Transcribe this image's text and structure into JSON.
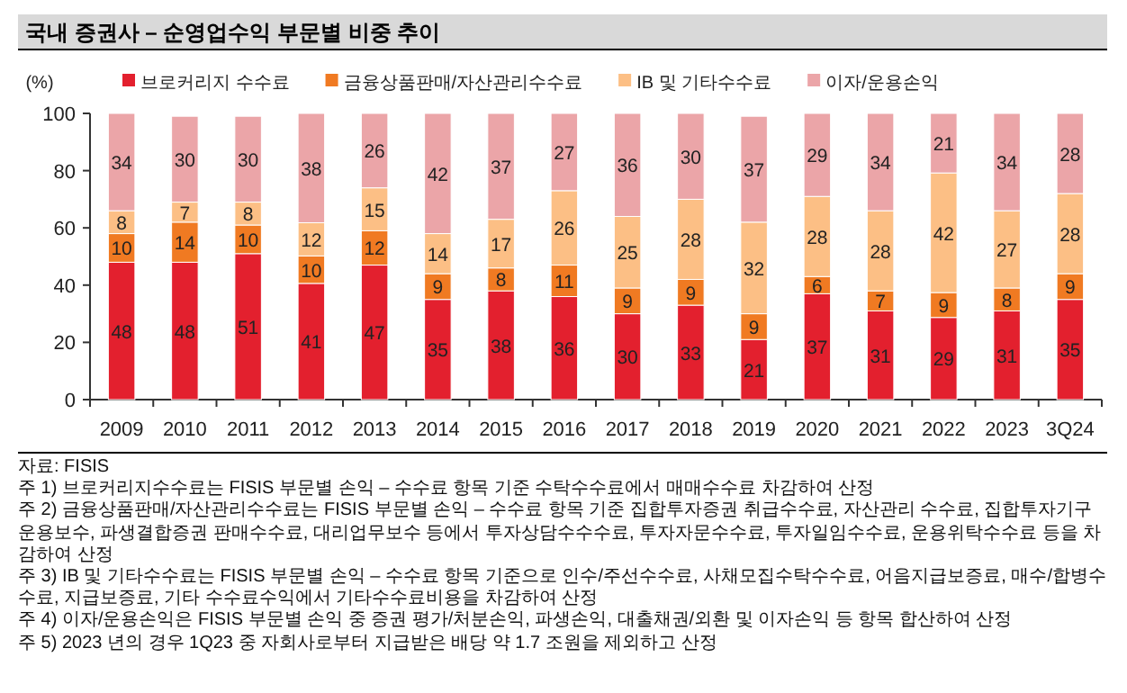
{
  "chart_data": {
    "type": "bar",
    "title": "국내 증권사 – 순영업수익 부문별 비중 추이",
    "ylabel": "(%)",
    "categories": [
      "2009",
      "2010",
      "2011",
      "2012",
      "2013",
      "2014",
      "2015",
      "2016",
      "2017",
      "2018",
      "2019",
      "2020",
      "2021",
      "2022",
      "2023",
      "3Q24"
    ],
    "series": [
      {
        "name": "브로커리지 수수료",
        "color": "#e3202e",
        "values": [
          48,
          48,
          51,
          40.6,
          47,
          35,
          38,
          36,
          30,
          33,
          21,
          37,
          31,
          28.7,
          31,
          35
        ],
        "value_labels": [
          "48",
          "48",
          "51",
          "41",
          "47",
          "35",
          "38",
          "36",
          "30",
          "33",
          "21",
          "37",
          "31",
          "29",
          "31",
          "35"
        ]
      },
      {
        "name": "금융상품판매/자산관리수수료",
        "color": "#f07a22",
        "values": [
          10,
          14,
          10,
          9.6,
          12,
          9,
          8,
          11,
          9,
          9,
          9,
          6,
          7,
          8.7,
          8,
          9
        ],
        "value_labels": [
          "10",
          "14",
          "10",
          "10",
          "12",
          "9",
          "8",
          "11",
          "9",
          "9",
          "9",
          "6",
          "7",
          "9",
          "8",
          "9"
        ]
      },
      {
        "name": "IB 및 기타수수료",
        "color": "#fcbf85",
        "values": [
          8,
          7,
          8,
          11.6,
          15,
          14,
          17,
          26,
          25,
          28,
          32,
          28,
          28,
          41.8,
          27,
          28
        ],
        "value_labels": [
          "8",
          "7",
          "8",
          "12",
          "15",
          "14",
          "17",
          "26",
          "25",
          "28",
          "32",
          "28",
          "28",
          "42",
          "27",
          "28"
        ]
      },
      {
        "name": "이자/운용손익",
        "color": "#eba5a8",
        "values": [
          34,
          30,
          30,
          38.2,
          26,
          42,
          37,
          27,
          36,
          30,
          37,
          29,
          34,
          20.8,
          34,
          28
        ],
        "value_labels": [
          "34",
          "30",
          "30",
          "38",
          "26",
          "42",
          "37",
          "27",
          "36",
          "30",
          "37",
          "29",
          "34",
          "21",
          "34",
          "28"
        ]
      }
    ],
    "stacked": true,
    "ylim": [
      0,
      100
    ],
    "yticks": [
      0,
      20,
      40,
      60,
      80,
      100
    ],
    "legend": "top",
    "grid": false,
    "annotations": [
      "자료: FISIS",
      "주 1) 브로커리지수수료는 FISIS 부문별 손익 – 수수료 항목 기준 수탁수수료에서 매매수수료 차감하여 산정",
      "주 2) 금융상품판매/자산관리수수료는 FISIS 부문별 손익 – 수수료 항목 기준 집합투자증권 취급수수료, 자산관리 수수료, 집합투자기구 운용보수, 파생결합증권 판매수수료, 대리업무보수 등에서 투자상담수수수료, 투자자문수수료, 투자일임수수료, 운용위탁수수료 등을 차감하여 산정",
      "주 3) IB 및 기타수수료는 FISIS 부문별 손익 – 수수료 항목 기준으로 인수/주선수수료, 사채모집수탁수수료, 어음지급보증료, 매수/합병수수료, 지급보증료, 기타 수수료수익에서 기타수수료비용을 차감하여 산정",
      "주 4) 이자/운용손익은 FISIS 부문별 손익 중 증권 평가/처분손익, 파생손익, 대출채권/외환 및 이자손익 등 항목 합산하여 산정",
      "주 5) 2023 년의 경우 1Q23 중 자회사로부터 지급받은 배당 약 1.7 조원을 제외하고 산정"
    ]
  }
}
